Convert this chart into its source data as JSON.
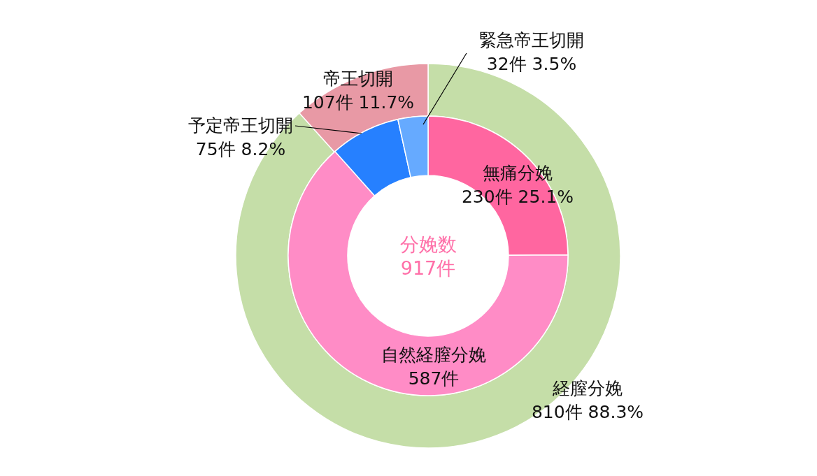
{
  "chart_data": [
    {
      "type": "donut",
      "categories": [
        "経膣分娩",
        "帝王切開"
      ],
      "values": [
        810,
        107
      ],
      "colors": [
        "#c5dea8",
        "#e899a5"
      ],
      "value_labels": [
        "810件 88.3%",
        "107件 11.7%"
      ]
    },
    {
      "type": "donut",
      "categories": [
        "無痛分娩",
        "自然経膣分娩",
        "予定帝王切開",
        "緊急帝王切開"
      ],
      "values": [
        230,
        587,
        75,
        32
      ],
      "colors": [
        "#ff66a0",
        "#ff8cc6",
        "#2680ff",
        "#66aaff"
      ],
      "value_labels": [
        "230件 25.1%",
        "587件",
        "75件 8.2%",
        "32件 3.5%"
      ],
      "annotations": [
        "分娩数",
        "917件"
      ]
    }
  ]
}
